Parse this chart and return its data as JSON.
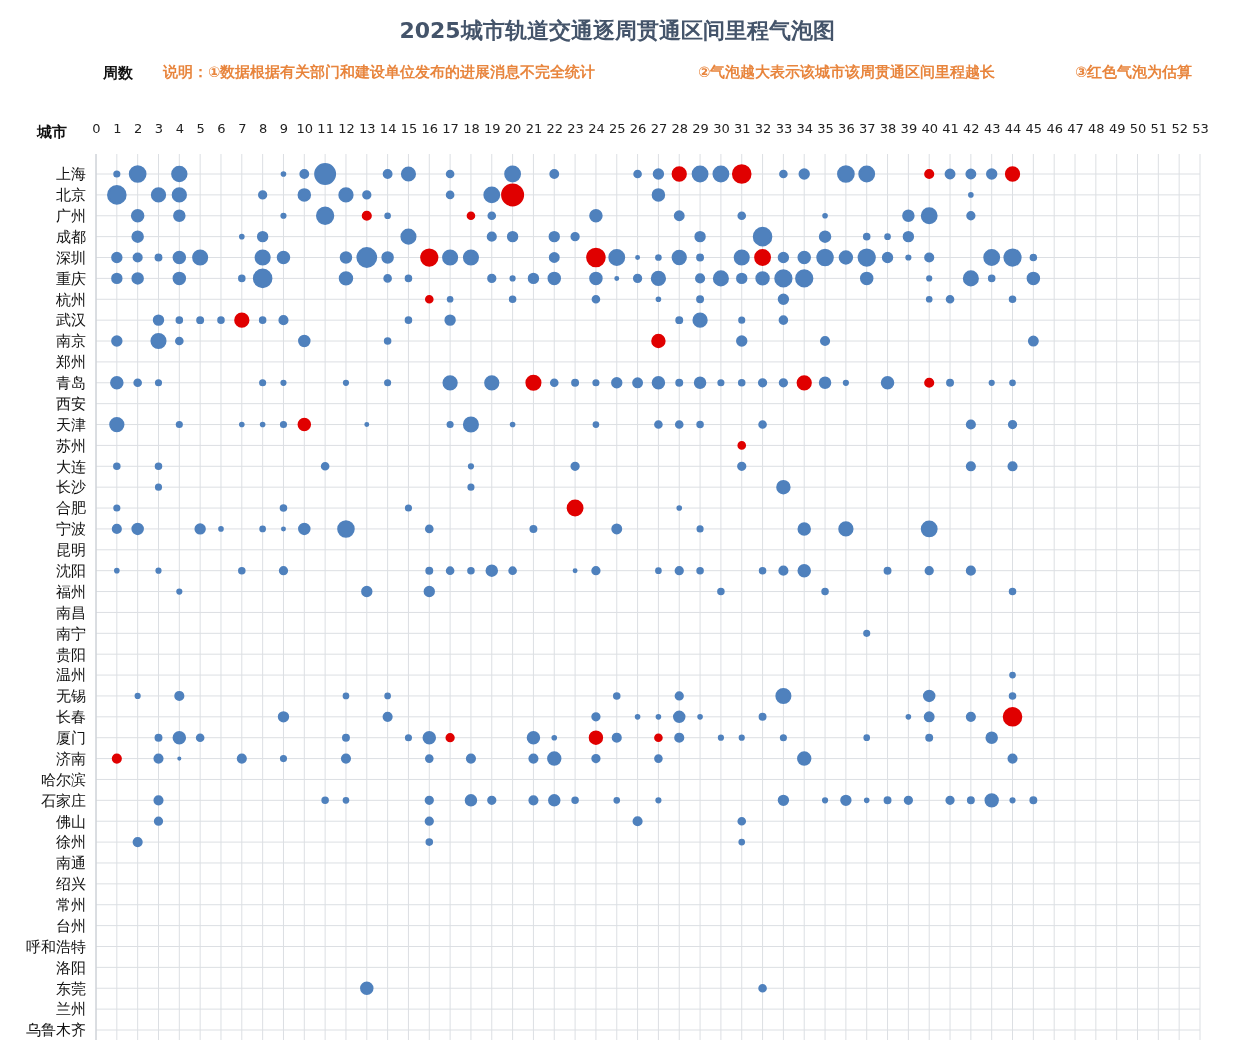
{
  "chart_data": {
    "type": "bubble",
    "title": "2025城市轨道交通逐周贯通区间里程气泡图",
    "xlabel": "周数",
    "ylabel": "城市",
    "annotations": [
      "说明：①数据根据有关部门和建设单位发布的进展消息不完全统计",
      "②气泡越大表示该城市该周贯通区间里程越长",
      "③红色气泡为估算"
    ],
    "xlim": [
      0,
      53
    ],
    "xticks": [
      0,
      1,
      2,
      3,
      4,
      5,
      6,
      7,
      8,
      9,
      10,
      11,
      12,
      13,
      14,
      15,
      16,
      17,
      18,
      19,
      20,
      21,
      22,
      23,
      24,
      25,
      26,
      27,
      28,
      29,
      30,
      31,
      32,
      33,
      34,
      35,
      36,
      37,
      38,
      39,
      40,
      41,
      42,
      43,
      44,
      45,
      46,
      47,
      48,
      49,
      50,
      51,
      52,
      53
    ],
    "grid": true,
    "orientation": "horizontal",
    "categories": [
      "上海",
      "北京",
      "广州",
      "成都",
      "深圳",
      "重庆",
      "杭州",
      "武汉",
      "南京",
      "郑州",
      "青岛",
      "西安",
      "天津",
      "苏州",
      "大连",
      "长沙",
      "合肥",
      "宁波",
      "昆明",
      "沈阳",
      "福州",
      "南昌",
      "南宁",
      "贵阳",
      "温州",
      "无锡",
      "长春",
      "厦门",
      "济南",
      "哈尔滨",
      "石家庄",
      "佛山",
      "徐州",
      "南通",
      "绍兴",
      "常州",
      "台州",
      "呼和浩特",
      "洛阳",
      "东莞",
      "兰州",
      "乌鲁木齐"
    ],
    "series": [
      {
        "color": "#4f81bd",
        "values": [
          1,
          2,
          4,
          9,
          10,
          11,
          14,
          15,
          17,
          20,
          22,
          26,
          27,
          29,
          30,
          33,
          34,
          36,
          37,
          41,
          42,
          43,
          1,
          3,
          4,
          8,
          10,
          12,
          13,
          17,
          19,
          27,
          42,
          2,
          4,
          9,
          11,
          14,
          19,
          24,
          28,
          31,
          35,
          39,
          40,
          42,
          2,
          7,
          8,
          15,
          19,
          20,
          22,
          23,
          29,
          32,
          35,
          37,
          38,
          39,
          1,
          2,
          3,
          4,
          5,
          8,
          9,
          12,
          13,
          14,
          17,
          18,
          22,
          25,
          26,
          27,
          28,
          29,
          31,
          33,
          34,
          35,
          36,
          37,
          38,
          39,
          40,
          43,
          44,
          45,
          1,
          2,
          4,
          7,
          8,
          12,
          14,
          15,
          19,
          20,
          21,
          22,
          24,
          25,
          26,
          27,
          29,
          30,
          31,
          32,
          33,
          34,
          37,
          40,
          42,
          43,
          45,
          17,
          20,
          24,
          27,
          29,
          33,
          40,
          41,
          44,
          3,
          4,
          5,
          6,
          8,
          9,
          15,
          17,
          28,
          29,
          31,
          33,
          1,
          3,
          4,
          10,
          14,
          31,
          35,
          45,
          1,
          2,
          3,
          8,
          9,
          12,
          14,
          17,
          19,
          22,
          23,
          24,
          25,
          26,
          27,
          28,
          29,
          30,
          31,
          32,
          33,
          35,
          36,
          38,
          41,
          43,
          44,
          1,
          4,
          7,
          8,
          9,
          13,
          17,
          18,
          20,
          24,
          27,
          28,
          29,
          32,
          42,
          44,
          1,
          3,
          11,
          18,
          23,
          31,
          42,
          44,
          3,
          18,
          33,
          1,
          9,
          15,
          28,
          1,
          2,
          5,
          6,
          8,
          9,
          10,
          12,
          16,
          21,
          25,
          29,
          34,
          36,
          40,
          1,
          3,
          7,
          9,
          16,
          17,
          18,
          19,
          20,
          23,
          24,
          27,
          28,
          29,
          32,
          33,
          34,
          38,
          40,
          42,
          4,
          13,
          16,
          30,
          35,
          44,
          37,
          44,
          2,
          4,
          12,
          14,
          25,
          28,
          33,
          40,
          44,
          9,
          14,
          24,
          26,
          27,
          28,
          29,
          32,
          39,
          40,
          42,
          3,
          4,
          5,
          12,
          15,
          16,
          21,
          22,
          25,
          28,
          30,
          31,
          33,
          37,
          40,
          43,
          3,
          4,
          7,
          9,
          12,
          16,
          18,
          21,
          22,
          24,
          27,
          34,
          44,
          3,
          11,
          12,
          16,
          18,
          19,
          21,
          22,
          23,
          25,
          27,
          33,
          35,
          36,
          37,
          38,
          39,
          41,
          42,
          43,
          44,
          45,
          3,
          16,
          26,
          31,
          2,
          16,
          31,
          13,
          32
        ],
        "x": [
          "上海",
          "上海",
          "上海",
          "上海",
          "上海",
          "上海",
          "上海",
          "上海",
          "上海",
          "上海",
          "上海",
          "上海",
          "上海",
          "上海",
          "上海",
          "上海",
          "上海",
          "上海",
          "上海",
          "上海",
          "上海",
          "上海",
          "北京",
          "北京",
          "北京",
          "北京",
          "北京",
          "北京",
          "北京",
          "北京",
          "北京",
          "北京",
          "北京",
          "广州",
          "广州",
          "广州",
          "广州",
          "广州",
          "广州",
          "广州",
          "广州",
          "广州",
          "广州",
          "广州",
          "广州",
          "广州",
          "成都",
          "成都",
          "成都",
          "成都",
          "成都",
          "成都",
          "成都",
          "成都",
          "成都",
          "成都",
          "成都",
          "成都",
          "成都",
          "成都",
          "深圳",
          "深圳",
          "深圳",
          "深圳",
          "深圳",
          "深圳",
          "深圳",
          "深圳",
          "深圳",
          "深圳",
          "深圳",
          "深圳",
          "深圳",
          "深圳",
          "深圳",
          "深圳",
          "深圳",
          "深圳",
          "深圳",
          "深圳",
          "深圳",
          "深圳",
          "深圳",
          "深圳",
          "深圳",
          "深圳",
          "深圳",
          "深圳",
          "深圳",
          "深圳",
          "重庆",
          "重庆",
          "重庆",
          "重庆",
          "重庆",
          "重庆",
          "重庆",
          "重庆",
          "重庆",
          "重庆",
          "重庆",
          "重庆",
          "重庆",
          "重庆",
          "重庆",
          "重庆",
          "重庆",
          "重庆",
          "重庆",
          "重庆",
          "重庆",
          "重庆",
          "重庆",
          "重庆",
          "重庆",
          "重庆",
          "重庆",
          "杭州",
          "杭州",
          "杭州",
          "杭州",
          "杭州",
          "杭州",
          "杭州",
          "杭州",
          "杭州",
          "武汉",
          "武汉",
          "武汉",
          "武汉",
          "武汉",
          "武汉",
          "武汉",
          "武汉",
          "武汉",
          "武汉",
          "武汉",
          "武汉",
          "南京",
          "南京",
          "南京",
          "南京",
          "南京",
          "南京",
          "南京",
          "南京",
          "青岛",
          "青岛",
          "青岛",
          "青岛",
          "青岛",
          "青岛",
          "青岛",
          "青岛",
          "青岛",
          "青岛",
          "青岛",
          "青岛",
          "青岛",
          "青岛",
          "青岛",
          "青岛",
          "青岛",
          "青岛",
          "青岛",
          "青岛",
          "青岛",
          "青岛",
          "青岛",
          "青岛",
          "青岛",
          "青岛",
          "青岛",
          "天津",
          "天津",
          "天津",
          "天津",
          "天津",
          "天津",
          "天津",
          "天津",
          "天津",
          "天津",
          "天津",
          "天津",
          "天津",
          "天津",
          "天津",
          "天津",
          "大连",
          "大连",
          "大连",
          "大连",
          "大连",
          "大连",
          "大连",
          "大连",
          "长沙",
          "长沙",
          "长沙",
          "合肥",
          "合肥",
          "合肥",
          "合肥",
          "宁波",
          "宁波",
          "宁波",
          "宁波",
          "宁波",
          "宁波",
          "宁波",
          "宁波",
          "宁波",
          "宁波",
          "宁波",
          "宁波",
          "宁波",
          "宁波",
          "宁波",
          "沈阳",
          "沈阳",
          "沈阳",
          "沈阳",
          "沈阳",
          "沈阳",
          "沈阳",
          "沈阳",
          "沈阳",
          "沈阳",
          "沈阳",
          "沈阳",
          "沈阳",
          "沈阳",
          "沈阳",
          "沈阳",
          "沈阳",
          "沈阳",
          "沈阳",
          "沈阳",
          "福州",
          "福州",
          "福州",
          "福州",
          "福州",
          "福州",
          "南宁",
          "温州",
          "无锡",
          "无锡",
          "无锡",
          "无锡",
          "无锡",
          "无锡",
          "无锡",
          "无锡",
          "无锡",
          "长春",
          "长春",
          "长春",
          "长春",
          "长春",
          "长春",
          "长春",
          "长春",
          "长春",
          "长春",
          "长春",
          "厦门",
          "厦门",
          "厦门",
          "厦门",
          "厦门",
          "厦门",
          "厦门",
          "厦门",
          "厦门",
          "厦门",
          "厦门",
          "厦门",
          "厦门",
          "厦门",
          "厦门",
          "厦门",
          "济南",
          "济南",
          "济南",
          "济南",
          "济南",
          "济南",
          "济南",
          "济南",
          "济南",
          "济南",
          "济南",
          "济南",
          "济南",
          "石家庄",
          "石家庄",
          "石家庄",
          "石家庄",
          "石家庄",
          "石家庄",
          "石家庄",
          "石家庄",
          "石家庄",
          "石家庄",
          "石家庄",
          "石家庄",
          "石家庄",
          "石家庄",
          "石家庄",
          "石家庄",
          "石家庄",
          "石家庄",
          "石家庄",
          "石家庄",
          "石家庄",
          "石家庄",
          "佛山",
          "佛山",
          "佛山",
          "佛山",
          "徐州",
          "徐州",
          "徐州",
          "东莞",
          "东莞"
        ],
        "sizes": [
          0.06,
          0.56,
          0.47,
          0.03,
          0.14,
          0.9,
          0.14,
          0.39,
          0.1,
          0.5,
          0.14,
          0.1,
          0.2,
          0.5,
          0.5,
          0.1,
          0.2,
          0.56,
          0.5,
          0.18,
          0.18,
          0.2,
          0.7,
          0.4,
          0.4,
          0.12,
          0.3,
          0.4,
          0.12,
          0.1,
          0.5,
          0.3,
          0.03,
          0.3,
          0.25,
          0.04,
          0.6,
          0.05,
          0.1,
          0.3,
          0.18,
          0.1,
          0.03,
          0.25,
          0.5,
          0.12,
          0.25,
          0.03,
          0.2,
          0.45,
          0.15,
          0.2,
          0.2,
          0.12,
          0.2,
          0.7,
          0.25,
          0.07,
          0.05,
          0.2,
          0.2,
          0.15,
          0.08,
          0.3,
          0.45,
          0.45,
          0.3,
          0.25,
          0.8,
          0.25,
          0.45,
          0.45,
          0.18,
          0.5,
          0.02,
          0.05,
          0.4,
          0.08,
          0.45,
          0.2,
          0.3,
          0.55,
          0.35,
          0.6,
          0.2,
          0.04,
          0.15,
          0.5,
          0.6,
          0.07,
          0.2,
          0.25,
          0.3,
          0.07,
          0.7,
          0.35,
          0.1,
          0.07,
          0.12,
          0.04,
          0.2,
          0.3,
          0.3,
          0.02,
          0.12,
          0.4,
          0.15,
          0.45,
          0.2,
          0.35,
          0.6,
          0.6,
          0.3,
          0.04,
          0.45,
          0.07,
          0.3,
          0.05,
          0.07,
          0.1,
          0.03,
          0.08,
          0.2,
          0.05,
          0.1,
          0.07,
          0.2,
          0.07,
          0.08,
          0.07,
          0.07,
          0.15,
          0.07,
          0.2,
          0.08,
          0.4,
          0.06,
          0.13,
          0.2,
          0.45,
          0.1,
          0.25,
          0.07,
          0.2,
          0.15,
          0.18,
          0.3,
          0.1,
          0.06,
          0.06,
          0.04,
          0.04,
          0.06,
          0.4,
          0.4,
          0.1,
          0.08,
          0.06,
          0.2,
          0.18,
          0.3,
          0.08,
          0.25,
          0.06,
          0.07,
          0.12,
          0.12,
          0.25,
          0.04,
          0.3,
          0.08,
          0.04,
          0.05,
          0.4,
          0.06,
          0.03,
          0.03,
          0.06,
          0.02,
          0.06,
          0.45,
          0.03,
          0.05,
          0.1,
          0.1,
          0.07,
          0.1,
          0.15,
          0.12,
          0.07,
          0.07,
          0.1,
          0.04,
          0.12,
          0.12,
          0.15,
          0.15,
          0.06,
          0.06,
          0.35,
          0.06,
          0.07,
          0.06,
          0.03,
          0.15,
          0.25,
          0.2,
          0.03,
          0.05,
          0.02,
          0.25,
          0.55,
          0.1,
          0.08,
          0.18,
          0.06,
          0.3,
          0.4,
          0.5,
          0.03,
          0.04,
          0.07,
          0.12,
          0.08,
          0.1,
          0.07,
          0.25,
          0.1,
          0.02,
          0.12,
          0.05,
          0.12,
          0.07,
          0.07,
          0.15,
          0.3,
          0.08,
          0.12,
          0.15,
          0.04,
          0.2,
          0.2,
          0.07,
          0.07,
          0.07,
          0.06,
          0.05,
          0.04,
          0.15,
          0.05,
          0.05,
          0.07,
          0.12,
          0.45,
          0.25,
          0.07,
          0.2,
          0.15,
          0.12,
          0.03,
          0.03,
          0.25,
          0.03,
          0.08,
          0.03,
          0.18,
          0.15,
          0.08,
          0.3,
          0.1,
          0.08,
          0.06,
          0.3,
          0.3,
          0.03,
          0.15,
          0.15,
          0.04,
          0.04,
          0.06,
          0.05,
          0.08,
          0.25,
          0.15,
          0.01,
          0.15,
          0.06,
          0.15,
          0.1,
          0.15,
          0.15,
          0.35,
          0.12,
          0.1,
          0.35,
          0.15,
          0.15,
          0.07,
          0.05,
          0.12,
          0.25,
          0.12,
          0.15,
          0.25,
          0.07,
          0.05,
          0.04,
          0.2,
          0.04,
          0.2,
          0.03,
          0.08,
          0.12,
          0.12,
          0.08,
          0.35,
          0.04,
          0.08,
          0.12,
          0.12,
          0.15,
          0.1,
          0.15,
          0.07,
          0.05,
          0.3,
          0.1
        ]
      },
      {
        "color": "#e00000",
        "values": [
          28,
          31,
          40,
          44,
          20,
          13,
          18,
          16,
          24,
          32,
          16,
          7,
          27,
          21,
          34,
          40,
          10,
          31,
          23,
          44,
          17,
          24,
          27,
          1
        ],
        "x": [
          "上海",
          "上海",
          "上海",
          "上海",
          "北京",
          "广州",
          "广州",
          "深圳",
          "深圳",
          "深圳",
          "杭州",
          "武汉",
          "南京",
          "青岛",
          "青岛",
          "青岛",
          "天津",
          "苏州",
          "合肥",
          "长春",
          "厦门",
          "厦门",
          "厦门",
          "济南"
        ],
        "sizes": [
          0.4,
          0.7,
          0.15,
          0.4,
          1,
          0.15,
          0.1,
          0.6,
          0.7,
          0.5,
          0.1,
          0.4,
          0.35,
          0.45,
          0.4,
          0.15,
          0.3,
          0.1,
          0.5,
          0.7,
          0.12,
          0.35,
          0.1,
          0.15
        ]
      }
    ]
  }
}
